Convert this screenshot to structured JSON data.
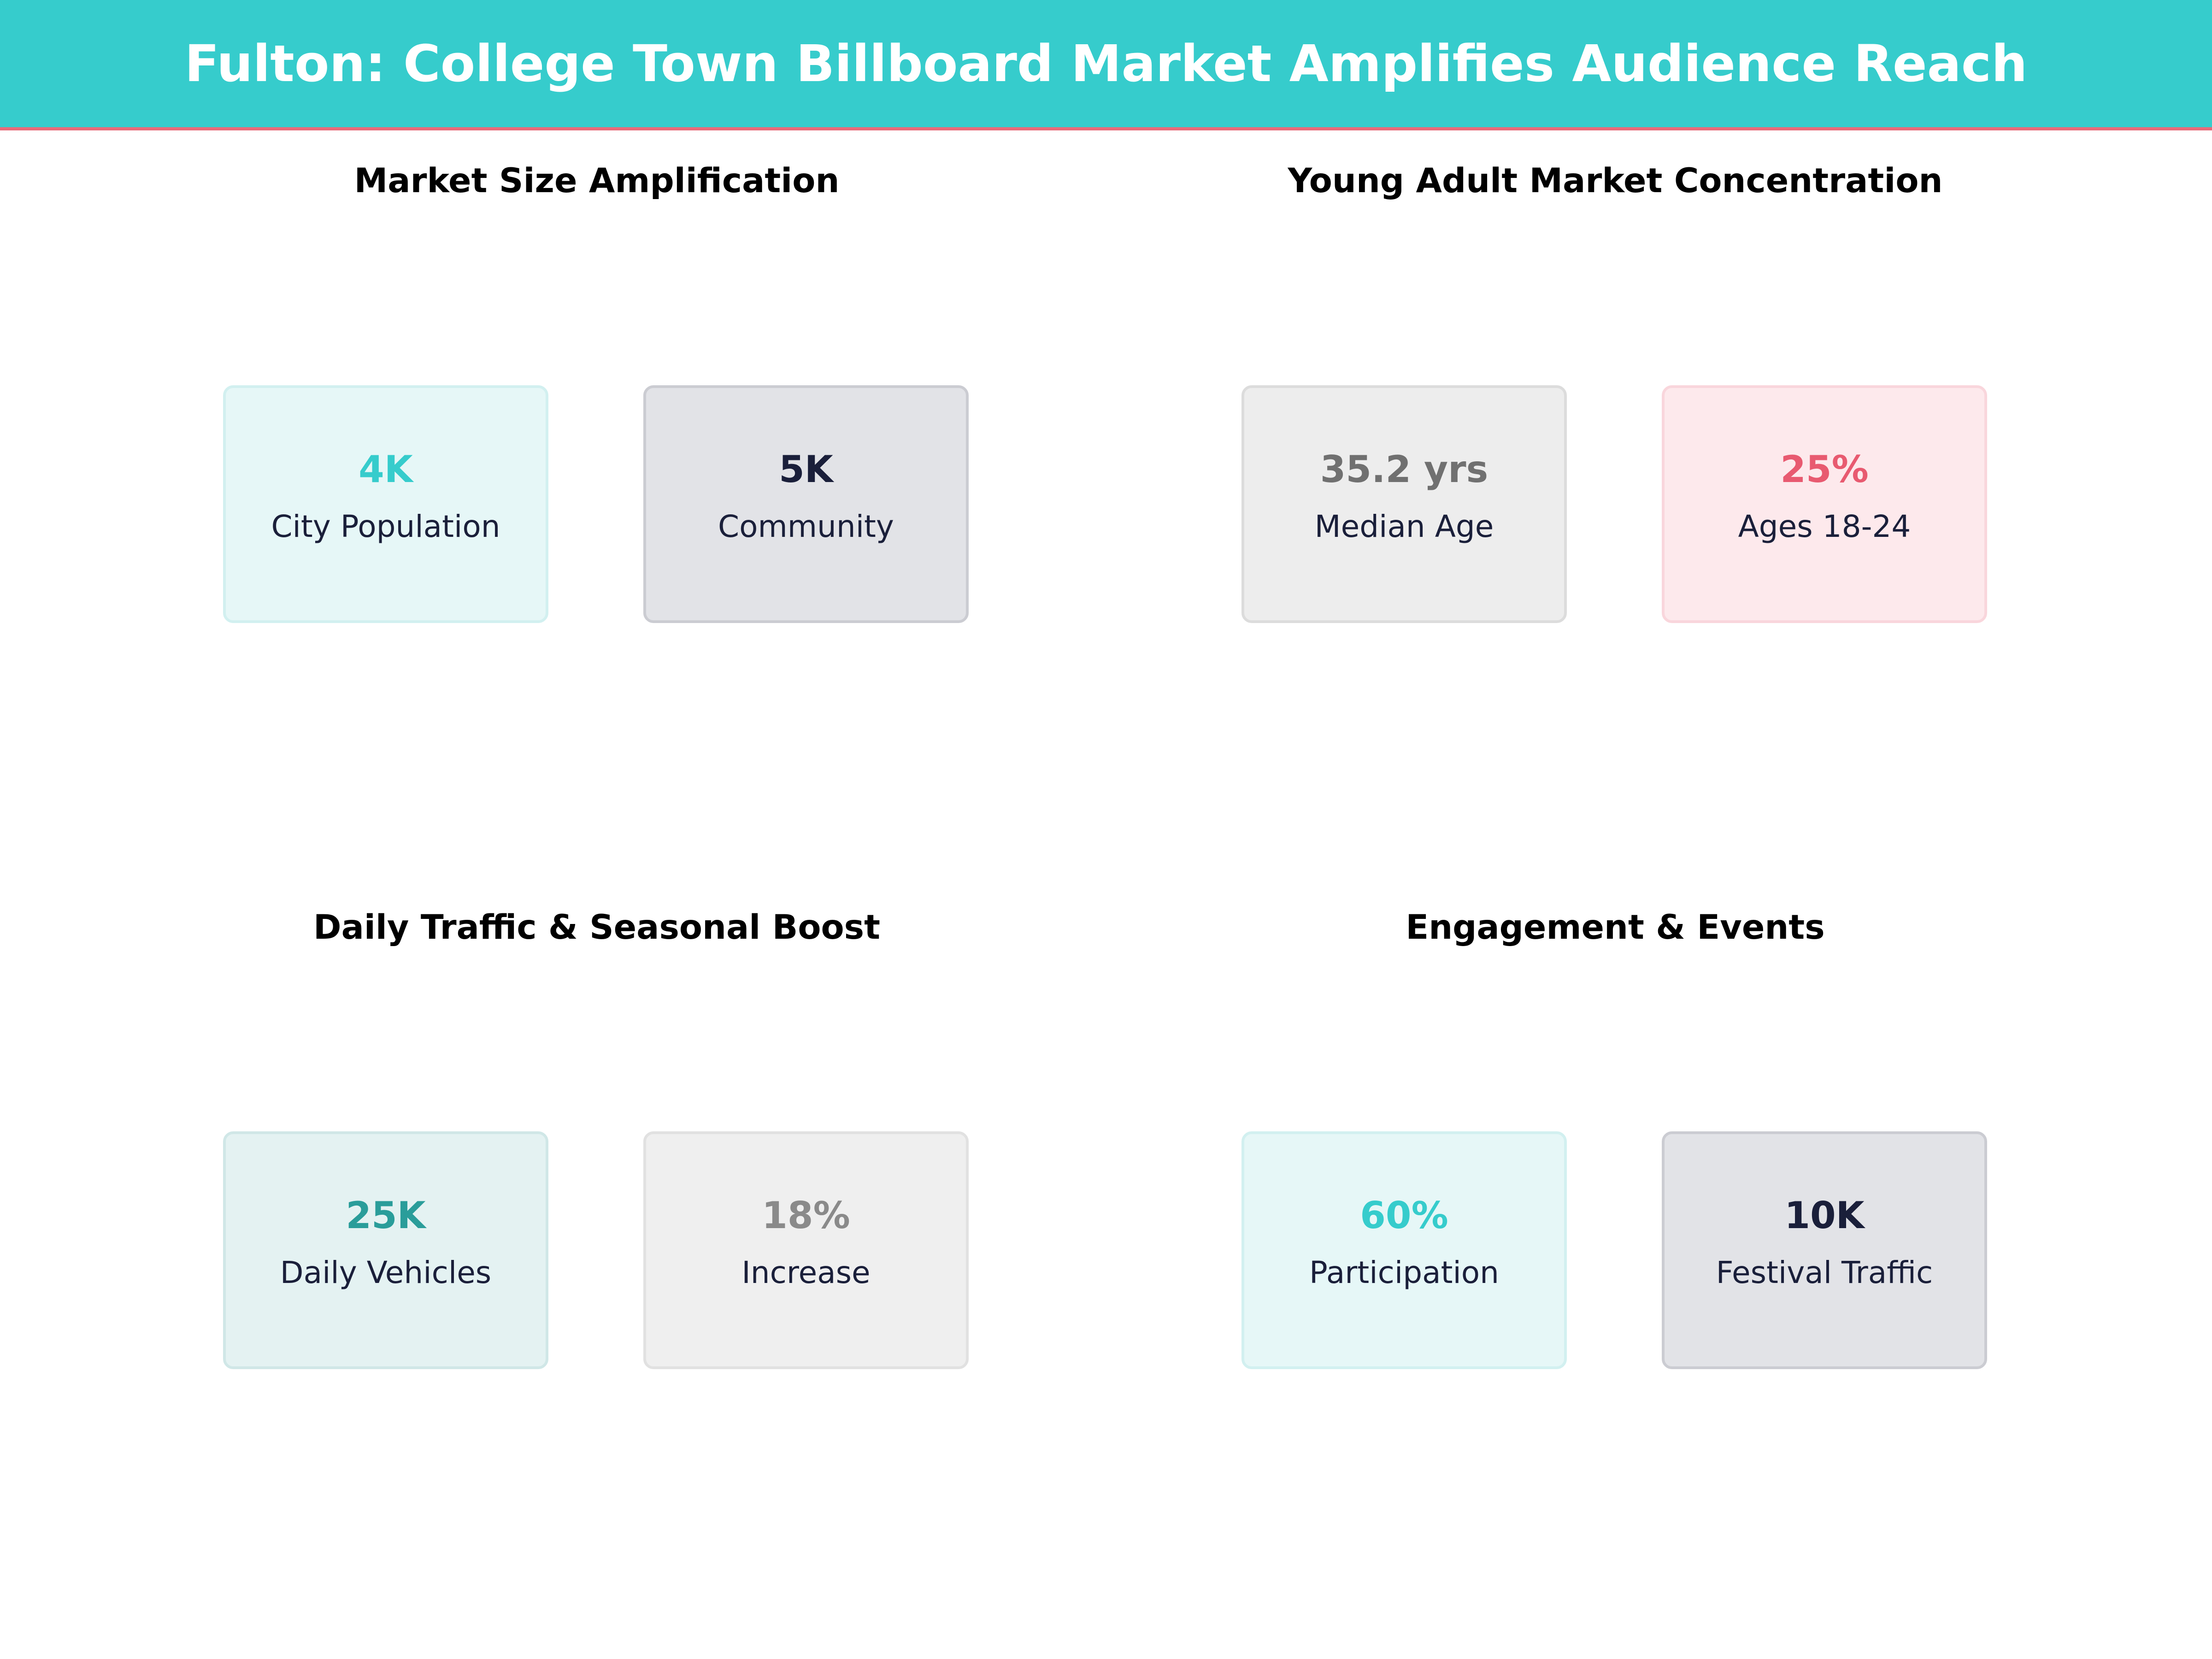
{
  "title": "Fulton: College Town Billboard Market Amplifies Audience Reach",
  "sections": [
    {
      "title": "Market Size Amplification",
      "cards": [
        {
          "value": "4K",
          "label": "City Population",
          "color": "#36cccc",
          "bg": "#e6f7f7",
          "border": "#d2f0f0"
        },
        {
          "value": "5K",
          "label": "Community",
          "color": "#1a1f3a",
          "bg": "#e2e3e7",
          "border": "#cbccd2"
        }
      ]
    },
    {
      "title": "Young Adult Market Concentration",
      "cards": [
        {
          "value": "35.2 yrs",
          "label": "Median Age",
          "color": "#707070",
          "bg": "#ededed",
          "border": "#dcdcdc"
        },
        {
          "value": "25%",
          "label": "Ages 18-24",
          "color": "#e85a70",
          "bg": "#fde9ec",
          "border": "#f9d6dc"
        }
      ]
    },
    {
      "title": "Daily Traffic & Seasonal Boost",
      "cards": [
        {
          "value": "25K",
          "label": "Daily Vehicles",
          "color": "#2a9d9a",
          "bg": "#e4f2f2",
          "border": "#d0e7e7"
        },
        {
          "value": "18%",
          "label": "Increase",
          "color": "#8a8a8a",
          "bg": "#efefef",
          "border": "#e1e1e1"
        }
      ]
    },
    {
      "title": "Engagement & Events",
      "cards": [
        {
          "value": "60%",
          "label": "Participation",
          "color": "#36cccc",
          "bg": "#e6f7f7",
          "border": "#d2f0f0"
        },
        {
          "value": "10K",
          "label": "Festival Traffic",
          "color": "#1a1f3a",
          "bg": "#e2e3e7",
          "border": "#cbccd2"
        }
      ]
    }
  ]
}
